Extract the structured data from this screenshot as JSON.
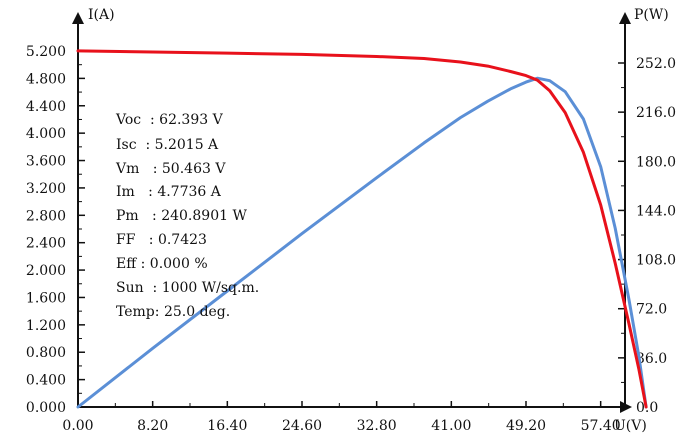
{
  "chart_data": {
    "type": "line",
    "title": "",
    "xlabel": "U(V)",
    "ylabel_left": "I(A)",
    "ylabel_right": "P(W)",
    "xlim": [
      0,
      64.0
    ],
    "ylim_left": [
      0,
      5.2
    ],
    "ylim_right": [
      0,
      252.0
    ],
    "x_ticks": [
      "0.00",
      "8.20",
      "16.40",
      "24.60",
      "32.80",
      "41.00",
      "49.20",
      "57.40"
    ],
    "x_tick_values": [
      0,
      8.2,
      16.4,
      24.6,
      32.8,
      41.0,
      49.2,
      57.4
    ],
    "y_left_ticks": [
      "0.000",
      "0.400",
      "0.800",
      "1.200",
      "1.600",
      "2.000",
      "2.400",
      "2.800",
      "3.200",
      "3.600",
      "4.000",
      "4.400",
      "4.800",
      "5.200"
    ],
    "y_left_tick_values": [
      0,
      0.4,
      0.8,
      1.2,
      1.6,
      2.0,
      2.4,
      2.8,
      3.2,
      3.6,
      4.0,
      4.4,
      4.8,
      5.2
    ],
    "y_right_ticks": [
      "0.0",
      "36.0",
      "72.0",
      "108.0",
      "144.0",
      "180.0",
      "216.0",
      "252.0"
    ],
    "y_right_tick_values": [
      0,
      36,
      72,
      108,
      144,
      180,
      216,
      252
    ],
    "grid": false,
    "series": [
      {
        "color": "#e8111b",
        "axis": "left",
        "x": [
          0,
          8.2,
          16.4,
          24.6,
          32.8,
          38.0,
          42.0,
          45.0,
          47.5,
          49.2,
          50.463,
          51.8,
          53.5,
          55.5,
          57.4,
          59.0,
          60.5,
          61.6,
          62.393
        ],
        "y": [
          5.2015,
          5.186,
          5.17,
          5.15,
          5.12,
          5.09,
          5.04,
          4.98,
          4.9,
          4.84,
          4.7736,
          4.62,
          4.3,
          3.72,
          2.95,
          2.1,
          1.22,
          0.55,
          0
        ]
      },
      {
        "color": "#5b8fd6",
        "axis": "right",
        "x": [
          0,
          8.2,
          16.4,
          24.6,
          32.8,
          38.0,
          42.0,
          45.0,
          47.5,
          49.2,
          50.463,
          51.8,
          53.5,
          55.5,
          57.4,
          59.0,
          60.5,
          61.6,
          62.393
        ],
        "y": [
          0,
          43,
          85,
          127,
          168,
          193.5,
          212,
          224,
          233,
          238,
          240.8901,
          239,
          231,
          211,
          176,
          131,
          79,
          37,
          0
        ]
      }
    ]
  },
  "info": {
    "lines": [
      "Voc  : 62.393 V",
      "Isc  : 5.2015 A",
      "Vm   : 50.463 V",
      "Im   : 4.7736 A",
      "Pm   : 240.8901 W",
      "FF   : 0.7423",
      "Eff : 0.000 %",
      "Sun  : 1000 W/sq.m.",
      "Temp: 25.0 deg."
    ]
  },
  "colors": {
    "axis": "#111111",
    "current_curve": "#e8111b",
    "power_curve": "#5b8fd6"
  }
}
